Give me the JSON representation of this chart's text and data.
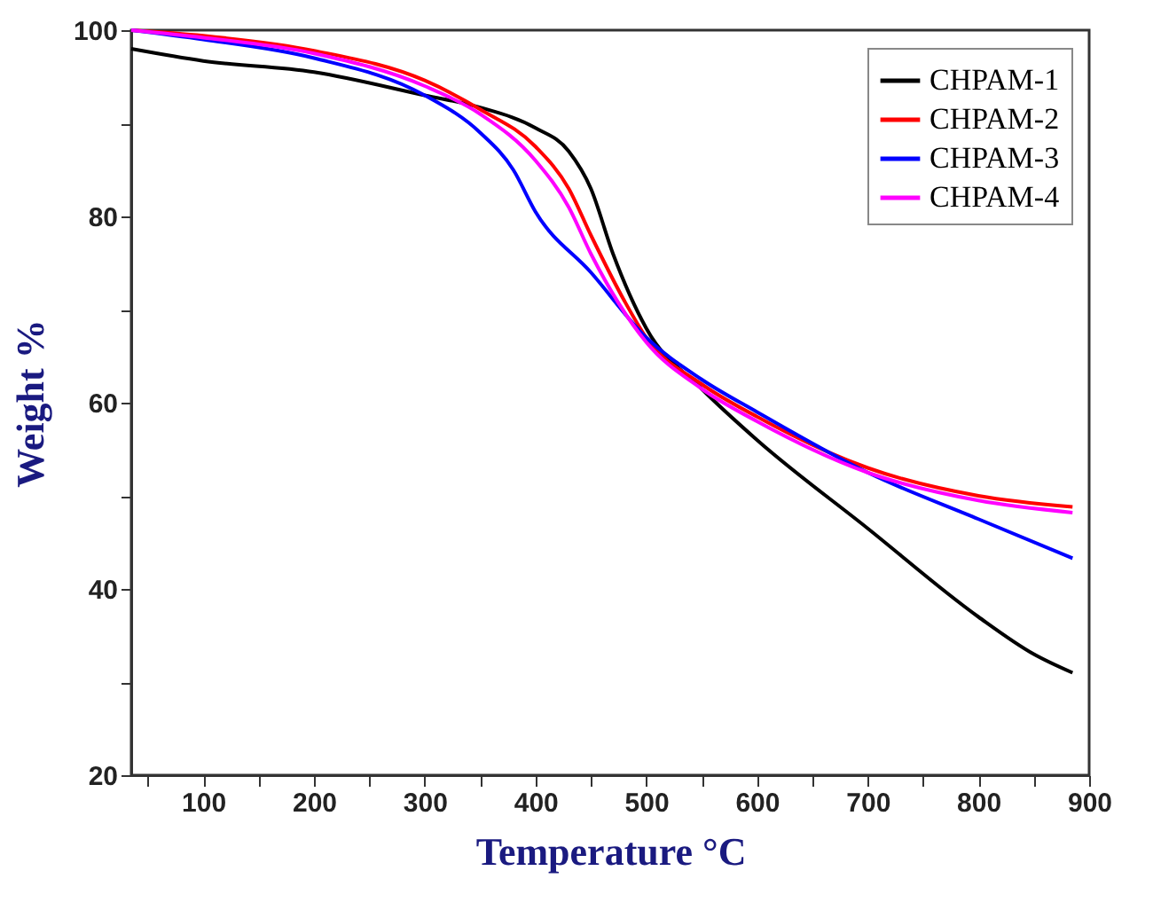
{
  "chart_data": {
    "type": "line",
    "xlabel": "Temperature °C",
    "ylabel": "Weight %",
    "xlim": [
      35,
      900
    ],
    "ylim": [
      20,
      100
    ],
    "xticks": [
      {
        "value": 50,
        "label": null
      },
      100,
      {
        "value": 150,
        "label": null
      },
      200,
      {
        "value": 250,
        "label": null
      },
      300,
      {
        "value": 350,
        "label": null
      },
      400,
      {
        "value": 450,
        "label": null
      },
      500,
      {
        "value": 550,
        "label": null
      },
      600,
      {
        "value": 650,
        "label": null
      },
      700,
      {
        "value": 750,
        "label": null
      },
      800,
      {
        "value": 850,
        "label": null
      },
      900
    ],
    "yticks": [
      20,
      {
        "value": 30,
        "label": null
      },
      40,
      {
        "value": 50,
        "label": null
      },
      60,
      {
        "value": 70,
        "label": null
      },
      80,
      {
        "value": 90,
        "label": null
      },
      100
    ],
    "grid": false,
    "legend": "top right",
    "line_style": "solid",
    "marker": "none",
    "series": [
      {
        "name": "CHPAM-1",
        "color": "#000000",
        "x": [
          35,
          100,
          200,
          300,
          350,
          400,
          430,
          450,
          470,
          500,
          550,
          600,
          700,
          800,
          850,
          885
        ],
        "values": [
          98.0,
          96.7,
          95.5,
          93.0,
          91.7,
          89.5,
          87,
          83,
          76,
          68,
          61.5,
          56,
          46.5,
          37,
          33,
          31
        ]
      },
      {
        "name": "CHPAM-2",
        "color": "#ff0000",
        "x": [
          35,
          100,
          200,
          300,
          350,
          400,
          430,
          450,
          480,
          500,
          550,
          600,
          700,
          800,
          885
        ],
        "values": [
          100,
          99.4,
          97.8,
          94.6,
          91.5,
          87.5,
          83,
          78,
          71,
          67,
          62,
          58.5,
          53,
          50,
          48.8
        ]
      },
      {
        "name": "CHPAM-3",
        "color": "#0000ff",
        "x": [
          35,
          100,
          200,
          300,
          350,
          380,
          400,
          450,
          500,
          550,
          600,
          700,
          800,
          885
        ],
        "values": [
          100,
          99,
          97,
          93,
          89,
          85,
          80.5,
          74,
          67,
          62.5,
          59,
          52.5,
          47.5,
          43.3
        ]
      },
      {
        "name": "CHPAM-4",
        "color": "#ff00ff",
        "x": [
          35,
          100,
          200,
          300,
          350,
          400,
          430,
          450,
          500,
          550,
          600,
          700,
          800,
          885
        ],
        "values": [
          100,
          99.2,
          97.5,
          94,
          91,
          86,
          81,
          76,
          66.5,
          61.5,
          58,
          52.5,
          49.5,
          48.2
        ]
      }
    ]
  }
}
